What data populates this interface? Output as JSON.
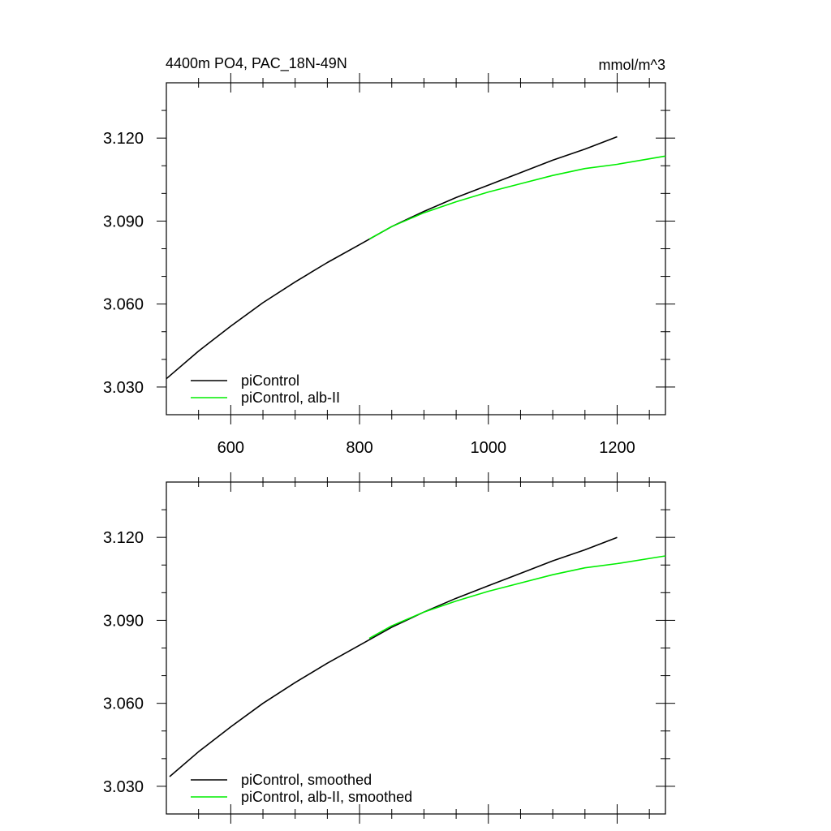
{
  "chart_data": [
    {
      "type": "line",
      "title_left": "4400m PO4, PAC_18N-49N",
      "title_right": "mmol/m^3",
      "xlabel": "",
      "ylabel": "",
      "xlim": [
        500,
        1275
      ],
      "ylim": [
        3.02,
        3.14
      ],
      "x_ticks": [
        600,
        800,
        1000,
        1200
      ],
      "x_tick_labels": [
        "600",
        "800",
        "1000",
        "1200"
      ],
      "x_ticks_labeled": true,
      "y_ticks": [
        3.03,
        3.06,
        3.09,
        3.12
      ],
      "y_tick_labels": [
        "3.030",
        "3.060",
        "3.090",
        "3.120"
      ],
      "grid": false,
      "legend_position": "bottom-left",
      "series": [
        {
          "name": "piControl",
          "color": "#000000",
          "x": [
            500,
            550,
            600,
            650,
            700,
            750,
            800,
            850,
            900,
            950,
            1000,
            1050,
            1100,
            1150,
            1200
          ],
          "y": [
            3.033,
            3.043,
            3.052,
            3.0605,
            3.068,
            3.075,
            3.0815,
            3.088,
            3.0935,
            3.0985,
            3.103,
            3.1075,
            3.112,
            3.116,
            3.1205
          ]
        },
        {
          "name": "piControl, alb-II",
          "color": "#00ee00",
          "x": [
            815,
            850,
            900,
            950,
            1000,
            1050,
            1100,
            1150,
            1200,
            1275
          ],
          "y": [
            3.0835,
            3.088,
            3.093,
            3.097,
            3.1005,
            3.1035,
            3.1065,
            3.109,
            3.1105,
            3.1135
          ]
        }
      ]
    },
    {
      "type": "line",
      "xlabel": "",
      "ylabel": "",
      "xlim": [
        500,
        1275
      ],
      "ylim": [
        3.02,
        3.14
      ],
      "x_ticks": [
        600,
        800,
        1000,
        1200
      ],
      "x_tick_labels": [],
      "x_ticks_labeled": false,
      "y_ticks": [
        3.03,
        3.06,
        3.09,
        3.12
      ],
      "y_tick_labels": [
        "3.030",
        "3.060",
        "3.090",
        "3.120"
      ],
      "grid": false,
      "legend_position": "bottom-left",
      "series": [
        {
          "name": "piControl, smoothed",
          "color": "#000000",
          "x": [
            505,
            550,
            600,
            650,
            700,
            750,
            800,
            850,
            900,
            950,
            1000,
            1050,
            1100,
            1150,
            1200
          ],
          "y": [
            3.0335,
            3.0425,
            3.0515,
            3.06,
            3.0675,
            3.0745,
            3.081,
            3.0875,
            3.093,
            3.098,
            3.1025,
            3.107,
            3.1115,
            3.1155,
            3.12
          ]
        },
        {
          "name": "piControl, alb-II, smoothed",
          "color": "#00ee00",
          "x": [
            815,
            850,
            900,
            950,
            1000,
            1050,
            1100,
            1150,
            1200,
            1275
          ],
          "y": [
            3.0835,
            3.088,
            3.093,
            3.097,
            3.1005,
            3.1035,
            3.1065,
            3.109,
            3.1105,
            3.1133
          ]
        }
      ]
    }
  ]
}
